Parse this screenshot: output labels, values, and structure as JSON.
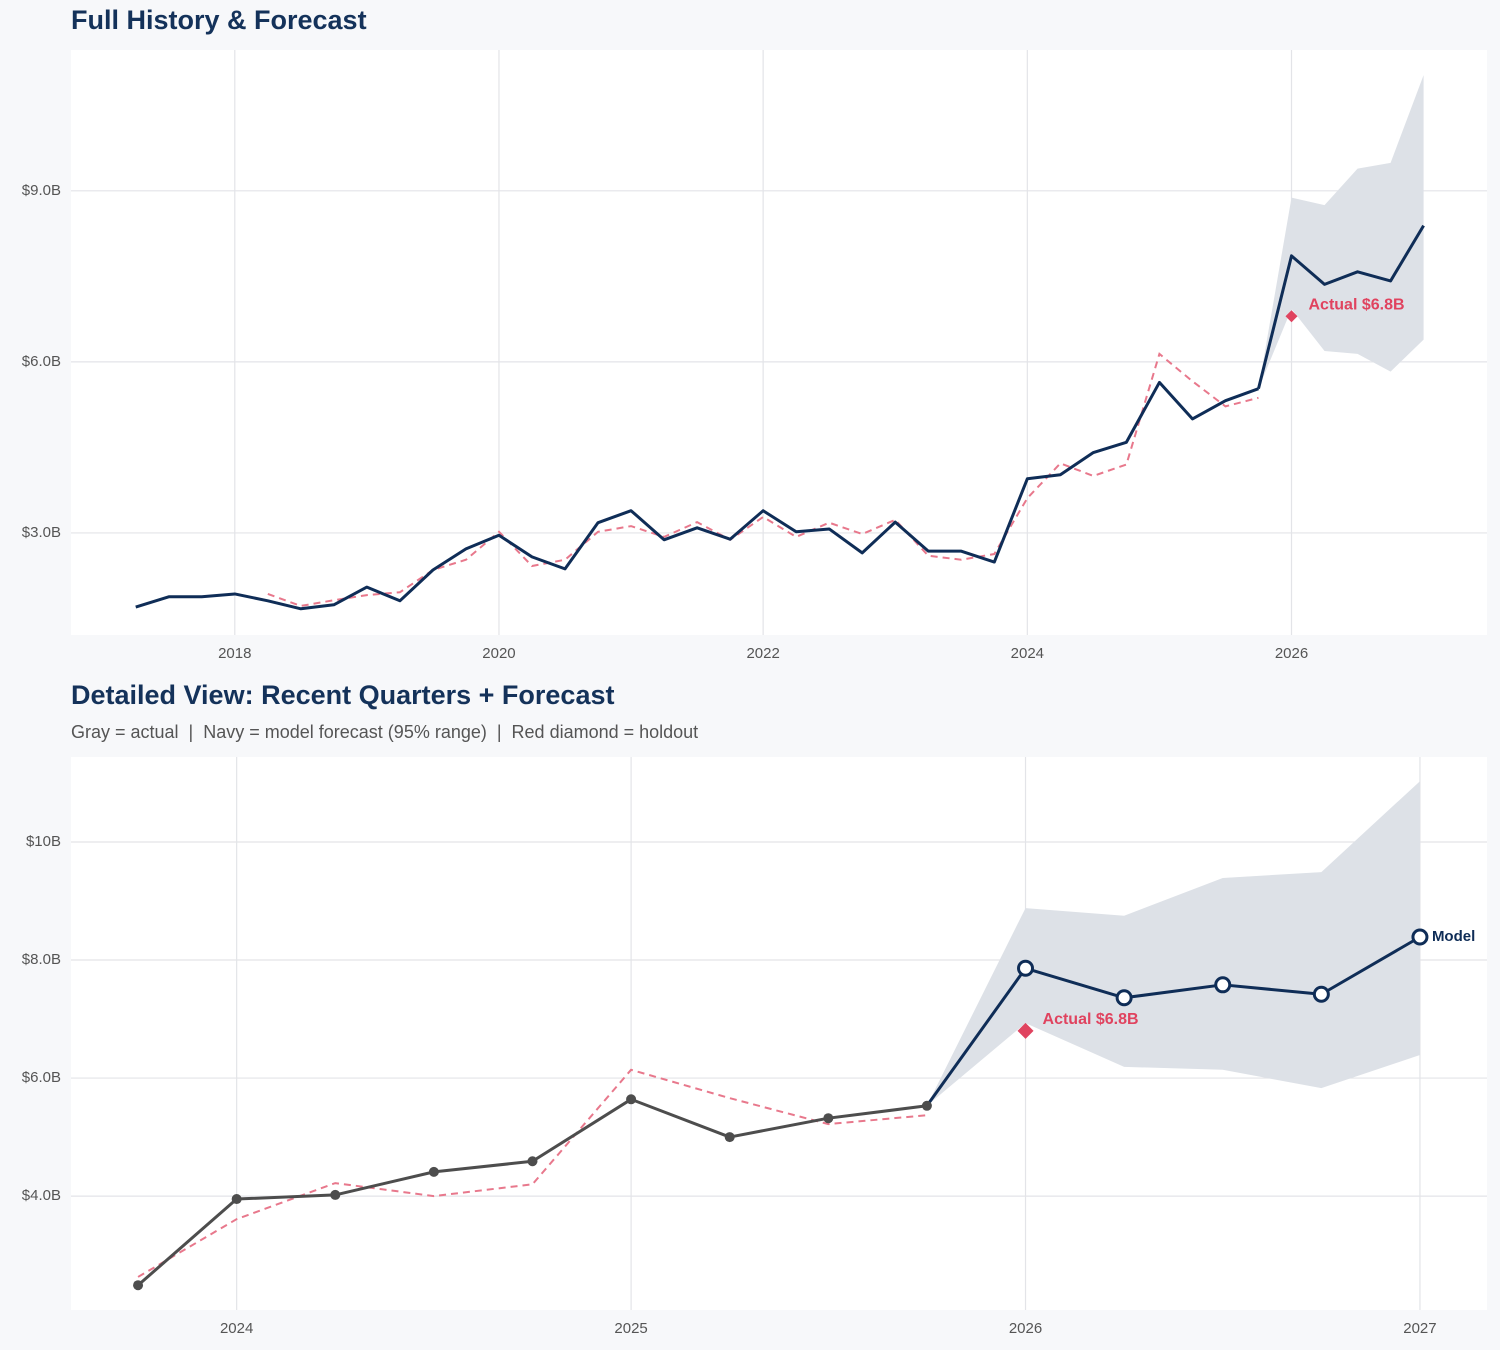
{
  "chart_data": [
    {
      "type": "line",
      "title": "Full History & Forecast",
      "xlim": [
        2016.76,
        2027.48
      ],
      "ylim": [
        1.21,
        11.47
      ],
      "xticks": [
        2018,
        2020,
        2022,
        2024,
        2026
      ],
      "yticks": [
        {
          "value": 3,
          "label": "$3.0B"
        },
        {
          "value": 6,
          "label": "$6.0B"
        },
        {
          "value": 9,
          "label": "$9.0B"
        }
      ],
      "grid": true,
      "markers": false,
      "history": {
        "color": "#0f2d57",
        "x": [
          2017.25,
          2017.5,
          2017.75,
          2018,
          2018.25,
          2018.5,
          2018.75,
          2019,
          2019.25,
          2019.5,
          2019.75,
          2020,
          2020.25,
          2020.5,
          2020.75,
          2021,
          2021.25,
          2021.5,
          2021.75,
          2022,
          2022.25,
          2022.5,
          2022.75,
          2023,
          2023.25,
          2023.5,
          2023.75,
          2024,
          2024.25,
          2024.5,
          2024.75,
          2025,
          2025.25,
          2025.5,
          2025.75
        ],
        "values": [
          1.7,
          1.88,
          1.88,
          1.93,
          1.81,
          1.67,
          1.74,
          2.05,
          1.81,
          2.35,
          2.72,
          2.96,
          2.58,
          2.37,
          3.18,
          3.39,
          2.88,
          3.09,
          2.89,
          3.39,
          3.02,
          3.07,
          2.65,
          3.19,
          2.68,
          2.68,
          2.49,
          3.95,
          4.02,
          4.41,
          4.59,
          5.64,
          5.0,
          5.32,
          5.53
        ]
      },
      "fit": {
        "color": "#e8788c",
        "dash": true,
        "x": [
          2018.25,
          2018.5,
          2018.75,
          2019,
          2019.25,
          2019.5,
          2019.75,
          2020,
          2020.25,
          2020.5,
          2020.75,
          2021,
          2021.25,
          2021.5,
          2021.75,
          2022,
          2022.25,
          2022.5,
          2022.75,
          2023,
          2023.25,
          2023.5,
          2023.75,
          2024,
          2024.25,
          2024.5,
          2024.75,
          2025,
          2025.25,
          2025.5,
          2025.75
        ],
        "values": [
          1.93,
          1.72,
          1.82,
          1.91,
          1.96,
          2.35,
          2.53,
          3.02,
          2.42,
          2.53,
          3.02,
          3.12,
          2.93,
          3.19,
          2.88,
          3.28,
          2.93,
          3.18,
          2.98,
          3.23,
          2.6,
          2.53,
          2.63,
          3.61,
          4.22,
          4.0,
          4.2,
          6.14,
          5.66,
          5.22,
          5.37
        ]
      },
      "forecast": {
        "color": "#0f2d57",
        "band_color": "#dde1e7",
        "x": [
          2026,
          2026.25,
          2026.5,
          2026.75,
          2027
        ],
        "values": [
          7.86,
          7.36,
          7.58,
          7.42,
          8.39
        ],
        "lower": [
          6.93,
          6.19,
          6.14,
          5.83,
          6.39
        ],
        "upper": [
          8.88,
          8.75,
          9.39,
          9.49,
          11.03
        ]
      },
      "holdout": {
        "x": 2026,
        "value": 6.8,
        "color": "#e0435f",
        "label": "Actual $6.8B"
      }
    },
    {
      "type": "line",
      "title": "Detailed View: Recent Quarters + Forecast",
      "subtitle": "Gray = actual  |  Navy = model forecast (95% range)  |  Red diamond = holdout",
      "xlim": [
        2023.58,
        2027.17
      ],
      "ylim": [
        2.07,
        11.44
      ],
      "xticks": [
        2024,
        2025,
        2026,
        2027
      ],
      "yticks": [
        {
          "value": 4,
          "label": "$4.0B"
        },
        {
          "value": 6,
          "label": "$6.0B"
        },
        {
          "value": 8,
          "label": "$8.0B"
        },
        {
          "value": 10,
          "label": "$10B"
        }
      ],
      "grid": true,
      "markers": true,
      "history": {
        "color": "#4d4d4d",
        "x": [
          2023.75,
          2024,
          2024.25,
          2024.5,
          2024.75,
          2025,
          2025.25,
          2025.5,
          2025.75
        ],
        "values": [
          2.49,
          3.95,
          4.02,
          4.41,
          4.59,
          5.64,
          5.0,
          5.32,
          5.53
        ]
      },
      "fit": {
        "color": "#e8788c",
        "dash": true,
        "x": [
          2023.75,
          2024,
          2024.25,
          2024.5,
          2024.75,
          2025,
          2025.25,
          2025.5,
          2025.75
        ],
        "values": [
          2.63,
          3.61,
          4.22,
          4.0,
          4.2,
          6.14,
          5.66,
          5.22,
          5.37
        ]
      },
      "forecast": {
        "color": "#0f2d57",
        "band_color": "#dde1e7",
        "end_label": "Model",
        "x": [
          2026,
          2026.25,
          2026.5,
          2026.75,
          2027
        ],
        "values": [
          7.86,
          7.36,
          7.58,
          7.42,
          8.39
        ],
        "lower": [
          6.93,
          6.19,
          6.14,
          5.83,
          6.39
        ],
        "upper": [
          8.88,
          8.75,
          9.39,
          9.49,
          11.03
        ]
      },
      "holdout": {
        "x": 2026,
        "value": 6.8,
        "color": "#e0435f",
        "label": "Actual $6.8B"
      }
    }
  ]
}
